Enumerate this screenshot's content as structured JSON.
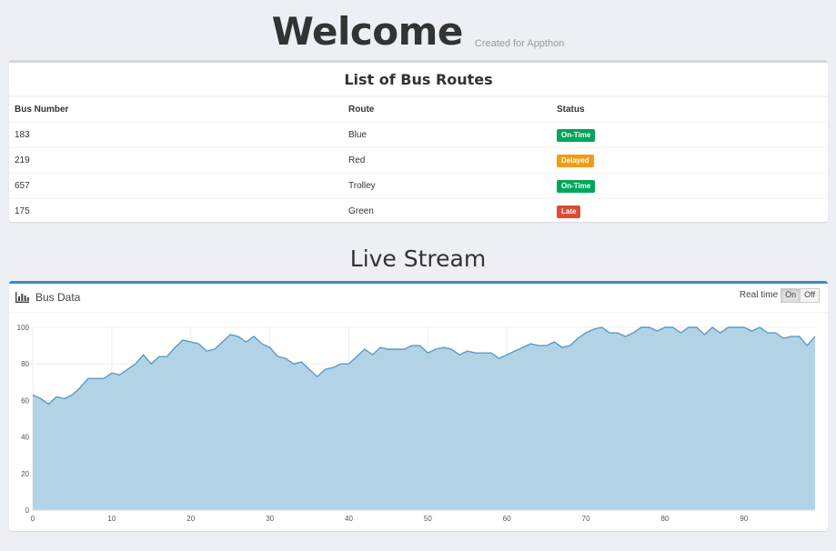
{
  "header": {
    "title": "Welcome",
    "subtitle": "Created for Appthon"
  },
  "routes": {
    "title": "List of Bus Routes",
    "columns": [
      "Bus Number",
      "Route",
      "Status"
    ],
    "rows": [
      {
        "bus": "183",
        "route": "Blue",
        "status": "On-Time",
        "status_color": "#00a65a"
      },
      {
        "bus": "219",
        "route": "Red",
        "status": "Delayed",
        "status_color": "#f39c12"
      },
      {
        "bus": "657",
        "route": "Trolley",
        "status": "On-Time",
        "status_color": "#00a65a"
      },
      {
        "bus": "175",
        "route": "Green",
        "status": "Late",
        "status_color": "#dd4b39"
      }
    ]
  },
  "live": {
    "section_title": "Live Stream",
    "chart_title": "Bus Data",
    "chart_icon": "bar-chart-icon",
    "realtime_label": "Real time",
    "on_label": "On",
    "off_label": "Off",
    "realtime_on": true
  },
  "colors": {
    "accent": "#3c8dbc",
    "fill": "#b2d3e6",
    "line": "#5a9bc4"
  },
  "chart_data": {
    "type": "area",
    "title": "",
    "xlabel": "",
    "ylabel": "",
    "xlim": [
      0,
      99
    ],
    "ylim": [
      0,
      100
    ],
    "xticks": [
      0,
      10,
      20,
      30,
      40,
      50,
      60,
      70,
      80,
      90
    ],
    "yticks": [
      0,
      20,
      40,
      60,
      80,
      100
    ],
    "grid": true,
    "series": [
      {
        "values": [
          63,
          61,
          58,
          62,
          61,
          63,
          67,
          72,
          72,
          72,
          75,
          74,
          77,
          80,
          85,
          80,
          84,
          84,
          89,
          93,
          92,
          91,
          87,
          88,
          92,
          96,
          95,
          92,
          95,
          91,
          89,
          84,
          83,
          80,
          81,
          77,
          73,
          77,
          78,
          80,
          80,
          84,
          88,
          85,
          89,
          88,
          88,
          88,
          90,
          90,
          86,
          88,
          89,
          88,
          85,
          87,
          86,
          86,
          86,
          83,
          85,
          87,
          89,
          91,
          90,
          90,
          92,
          89,
          90,
          94,
          97,
          99,
          100,
          97,
          97,
          95,
          97,
          100,
          100,
          98,
          100,
          100,
          97,
          100,
          100,
          96,
          100,
          97,
          100,
          100,
          100,
          98,
          100,
          97,
          97,
          94,
          95,
          95,
          90,
          95
        ]
      }
    ]
  }
}
